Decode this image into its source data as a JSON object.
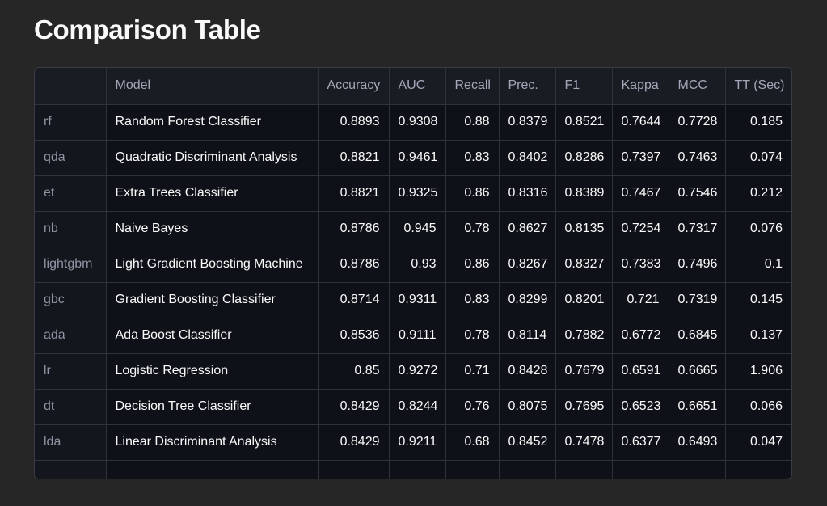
{
  "page": {
    "title": "Comparison Table"
  },
  "table": {
    "columns": [
      "",
      "Model",
      "Accuracy",
      "AUC",
      "Recall",
      "Prec.",
      "F1",
      "Kappa",
      "MCC",
      "TT (Sec)"
    ],
    "rows": [
      {
        "idx": "rf",
        "model": "Random Forest Classifier",
        "accuracy": "0.8893",
        "auc": "0.9308",
        "recall": "0.88",
        "prec": "0.8379",
        "f1": "0.8521",
        "kappa": "0.7644",
        "mcc": "0.7728",
        "tt": "0.185"
      },
      {
        "idx": "qda",
        "model": "Quadratic Discriminant Analysis",
        "accuracy": "0.8821",
        "auc": "0.9461",
        "recall": "0.83",
        "prec": "0.8402",
        "f1": "0.8286",
        "kappa": "0.7397",
        "mcc": "0.7463",
        "tt": "0.074"
      },
      {
        "idx": "et",
        "model": "Extra Trees Classifier",
        "accuracy": "0.8821",
        "auc": "0.9325",
        "recall": "0.86",
        "prec": "0.8316",
        "f1": "0.8389",
        "kappa": "0.7467",
        "mcc": "0.7546",
        "tt": "0.212"
      },
      {
        "idx": "nb",
        "model": "Naive Bayes",
        "accuracy": "0.8786",
        "auc": "0.945",
        "recall": "0.78",
        "prec": "0.8627",
        "f1": "0.8135",
        "kappa": "0.7254",
        "mcc": "0.7317",
        "tt": "0.076"
      },
      {
        "idx": "lightgbm",
        "model": "Light Gradient Boosting Machine",
        "accuracy": "0.8786",
        "auc": "0.93",
        "recall": "0.86",
        "prec": "0.8267",
        "f1": "0.8327",
        "kappa": "0.7383",
        "mcc": "0.7496",
        "tt": "0.1"
      },
      {
        "idx": "gbc",
        "model": "Gradient Boosting Classifier",
        "accuracy": "0.8714",
        "auc": "0.9311",
        "recall": "0.83",
        "prec": "0.8299",
        "f1": "0.8201",
        "kappa": "0.721",
        "mcc": "0.7319",
        "tt": "0.145"
      },
      {
        "idx": "ada",
        "model": "Ada Boost Classifier",
        "accuracy": "0.8536",
        "auc": "0.9111",
        "recall": "0.78",
        "prec": "0.8114",
        "f1": "0.7882",
        "kappa": "0.6772",
        "mcc": "0.6845",
        "tt": "0.137"
      },
      {
        "idx": "lr",
        "model": "Logistic Regression",
        "accuracy": "0.85",
        "auc": "0.9272",
        "recall": "0.71",
        "prec": "0.8428",
        "f1": "0.7679",
        "kappa": "0.6591",
        "mcc": "0.6665",
        "tt": "1.906"
      },
      {
        "idx": "dt",
        "model": "Decision Tree Classifier",
        "accuracy": "0.8429",
        "auc": "0.8244",
        "recall": "0.76",
        "prec": "0.8075",
        "f1": "0.7695",
        "kappa": "0.6523",
        "mcc": "0.6651",
        "tt": "0.066"
      },
      {
        "idx": "lda",
        "model": "Linear Discriminant Analysis",
        "accuracy": "0.8429",
        "auc": "0.9211",
        "recall": "0.68",
        "prec": "0.8452",
        "f1": "0.7478",
        "kappa": "0.6377",
        "mcc": "0.6493",
        "tt": "0.047"
      },
      {
        "idx": "",
        "model": "",
        "accuracy": "",
        "auc": "",
        "recall": "",
        "prec": "",
        "f1": "",
        "kappa": "",
        "mcc": "",
        "tt": ""
      }
    ]
  },
  "colors": {
    "page_background": "#262626",
    "table_background": "#0e1117",
    "header_background": "#1a1c24",
    "grid_line": "#30323b",
    "text_primary": "#fafafa",
    "text_muted": "#a3a8b8"
  }
}
